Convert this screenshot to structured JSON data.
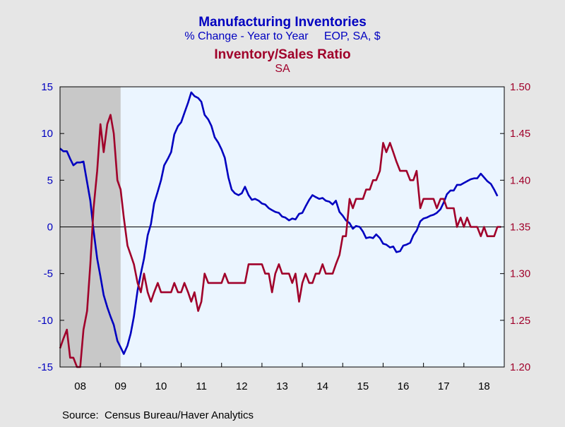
{
  "colors": {
    "blue": "#0000C0",
    "red": "#A0002A",
    "recession": "#C8C8C8",
    "plot_bg": "#EBF5FF",
    "background": "#E6E6E6"
  },
  "chart_data": {
    "type": "line",
    "title": "Manufacturing Inventories",
    "subtitle": "% Change - Year to Year     EOP, SA, $",
    "title2": "Inventory/Sales Ratio",
    "subtitle2": "SA",
    "source": "Source:  Census Bureau/Haver Analytics",
    "x_tick_labels": [
      "08",
      "09",
      "10",
      "11",
      "12",
      "13",
      "14",
      "15",
      "16",
      "17",
      "18"
    ],
    "x_range": [
      2008.0,
      2019.0
    ],
    "left_axis": {
      "ylim": [
        -15,
        15
      ],
      "ticks": [
        15,
        10,
        5,
        0,
        -5,
        -10,
        -15
      ]
    },
    "right_axis": {
      "ylim": [
        1.2,
        1.5
      ],
      "ticks": [
        "1.50",
        "1.45",
        "1.40",
        "1.35",
        "1.30",
        "1.25",
        "1.20"
      ]
    },
    "recession_shading": [
      [
        2008.0,
        2009.5
      ]
    ],
    "zero_line": 0,
    "grid": false,
    "series": [
      {
        "axis": "left",
        "color": "#0000C0",
        "points": [
          [
            2008.0,
            8.4
          ],
          [
            2008.08,
            8.1
          ],
          [
            2008.17,
            8.1
          ],
          [
            2008.25,
            7.3
          ],
          [
            2008.33,
            6.6
          ],
          [
            2008.42,
            6.9
          ],
          [
            2008.5,
            6.9
          ],
          [
            2008.58,
            7.0
          ],
          [
            2008.67,
            4.8
          ],
          [
            2008.75,
            2.8
          ],
          [
            2008.83,
            -0.4
          ],
          [
            2008.92,
            -3.4
          ],
          [
            2009.0,
            -5.3
          ],
          [
            2009.08,
            -7.3
          ],
          [
            2009.17,
            -8.6
          ],
          [
            2009.25,
            -9.6
          ],
          [
            2009.33,
            -10.5
          ],
          [
            2009.42,
            -12.2
          ],
          [
            2009.5,
            -12.9
          ],
          [
            2009.58,
            -13.6
          ],
          [
            2009.67,
            -12.7
          ],
          [
            2009.75,
            -11.4
          ],
          [
            2009.83,
            -9.6
          ],
          [
            2009.92,
            -6.8
          ],
          [
            2010.0,
            -5.0
          ],
          [
            2010.08,
            -3.4
          ],
          [
            2010.17,
            -0.9
          ],
          [
            2010.25,
            0.3
          ],
          [
            2010.33,
            2.5
          ],
          [
            2010.42,
            3.8
          ],
          [
            2010.5,
            5.0
          ],
          [
            2010.58,
            6.6
          ],
          [
            2010.67,
            7.3
          ],
          [
            2010.75,
            8.0
          ],
          [
            2010.83,
            9.9
          ],
          [
            2010.92,
            10.8
          ],
          [
            2011.0,
            11.2
          ],
          [
            2011.08,
            12.2
          ],
          [
            2011.17,
            13.3
          ],
          [
            2011.25,
            14.4
          ],
          [
            2011.33,
            14.0
          ],
          [
            2011.42,
            13.8
          ],
          [
            2011.5,
            13.4
          ],
          [
            2011.58,
            12.0
          ],
          [
            2011.67,
            11.5
          ],
          [
            2011.75,
            10.8
          ],
          [
            2011.83,
            9.6
          ],
          [
            2011.92,
            9.0
          ],
          [
            2012.0,
            8.3
          ],
          [
            2012.08,
            7.4
          ],
          [
            2012.17,
            5.3
          ],
          [
            2012.25,
            4.0
          ],
          [
            2012.33,
            3.6
          ],
          [
            2012.42,
            3.4
          ],
          [
            2012.5,
            3.6
          ],
          [
            2012.58,
            4.3
          ],
          [
            2012.67,
            3.4
          ],
          [
            2012.75,
            2.9
          ],
          [
            2012.83,
            3.0
          ],
          [
            2012.92,
            2.8
          ],
          [
            2013.0,
            2.5
          ],
          [
            2013.08,
            2.4
          ],
          [
            2013.17,
            2.0
          ],
          [
            2013.25,
            1.8
          ],
          [
            2013.33,
            1.6
          ],
          [
            2013.42,
            1.5
          ],
          [
            2013.5,
            1.1
          ],
          [
            2013.58,
            1.0
          ],
          [
            2013.67,
            0.7
          ],
          [
            2013.75,
            0.9
          ],
          [
            2013.83,
            0.8
          ],
          [
            2013.92,
            1.4
          ],
          [
            2014.0,
            1.5
          ],
          [
            2014.08,
            2.2
          ],
          [
            2014.17,
            2.9
          ],
          [
            2014.25,
            3.4
          ],
          [
            2014.33,
            3.2
          ],
          [
            2014.42,
            3.0
          ],
          [
            2014.5,
            3.1
          ],
          [
            2014.58,
            2.8
          ],
          [
            2014.67,
            2.7
          ],
          [
            2014.75,
            2.4
          ],
          [
            2014.83,
            2.8
          ],
          [
            2014.92,
            1.6
          ],
          [
            2015.0,
            1.2
          ],
          [
            2015.08,
            0.7
          ],
          [
            2015.17,
            0.4
          ],
          [
            2015.25,
            -0.2
          ],
          [
            2015.33,
            0.1
          ],
          [
            2015.42,
            0.0
          ],
          [
            2015.5,
            -0.5
          ],
          [
            2015.58,
            -1.2
          ],
          [
            2015.67,
            -1.1
          ],
          [
            2015.75,
            -1.2
          ],
          [
            2015.83,
            -0.8
          ],
          [
            2015.92,
            -1.2
          ],
          [
            2016.0,
            -1.8
          ],
          [
            2016.08,
            -1.9
          ],
          [
            2016.17,
            -2.2
          ],
          [
            2016.25,
            -2.1
          ],
          [
            2016.33,
            -2.7
          ],
          [
            2016.42,
            -2.6
          ],
          [
            2016.5,
            -2.0
          ],
          [
            2016.58,
            -1.9
          ],
          [
            2016.67,
            -1.7
          ],
          [
            2016.75,
            -0.9
          ],
          [
            2016.83,
            -0.4
          ],
          [
            2016.92,
            0.6
          ],
          [
            2017.0,
            0.9
          ],
          [
            2017.08,
            1.0
          ],
          [
            2017.17,
            1.2
          ],
          [
            2017.25,
            1.3
          ],
          [
            2017.33,
            1.5
          ],
          [
            2017.42,
            1.9
          ],
          [
            2017.5,
            2.6
          ],
          [
            2017.58,
            3.5
          ],
          [
            2017.67,
            3.9
          ],
          [
            2017.75,
            3.9
          ],
          [
            2017.83,
            4.5
          ],
          [
            2017.92,
            4.5
          ],
          [
            2018.0,
            4.7
          ],
          [
            2018.08,
            4.9
          ],
          [
            2018.17,
            5.1
          ],
          [
            2018.25,
            5.2
          ],
          [
            2018.33,
            5.2
          ],
          [
            2018.42,
            5.7
          ],
          [
            2018.5,
            5.3
          ],
          [
            2018.58,
            4.9
          ],
          [
            2018.67,
            4.6
          ],
          [
            2018.75,
            4.0
          ],
          [
            2018.83,
            3.3
          ]
        ]
      },
      {
        "axis": "right",
        "color": "#A0002A",
        "points": [
          [
            2008.0,
            1.22
          ],
          [
            2008.08,
            1.23
          ],
          [
            2008.17,
            1.24
          ],
          [
            2008.25,
            1.21
          ],
          [
            2008.33,
            1.21
          ],
          [
            2008.42,
            1.2
          ],
          [
            2008.5,
            1.2
          ],
          [
            2008.58,
            1.24
          ],
          [
            2008.67,
            1.26
          ],
          [
            2008.75,
            1.31
          ],
          [
            2008.83,
            1.37
          ],
          [
            2008.92,
            1.41
          ],
          [
            2009.0,
            1.46
          ],
          [
            2009.08,
            1.43
          ],
          [
            2009.17,
            1.46
          ],
          [
            2009.25,
            1.47
          ],
          [
            2009.33,
            1.45
          ],
          [
            2009.42,
            1.4
          ],
          [
            2009.5,
            1.39
          ],
          [
            2009.58,
            1.36
          ],
          [
            2009.67,
            1.33
          ],
          [
            2009.75,
            1.32
          ],
          [
            2009.83,
            1.31
          ],
          [
            2009.92,
            1.29
          ],
          [
            2010.0,
            1.28
          ],
          [
            2010.08,
            1.3
          ],
          [
            2010.17,
            1.28
          ],
          [
            2010.25,
            1.27
          ],
          [
            2010.33,
            1.28
          ],
          [
            2010.42,
            1.29
          ],
          [
            2010.5,
            1.28
          ],
          [
            2010.58,
            1.28
          ],
          [
            2010.67,
            1.28
          ],
          [
            2010.75,
            1.28
          ],
          [
            2010.83,
            1.29
          ],
          [
            2010.92,
            1.28
          ],
          [
            2011.0,
            1.28
          ],
          [
            2011.08,
            1.29
          ],
          [
            2011.17,
            1.28
          ],
          [
            2011.25,
            1.27
          ],
          [
            2011.33,
            1.28
          ],
          [
            2011.42,
            1.26
          ],
          [
            2011.5,
            1.27
          ],
          [
            2011.58,
            1.3
          ],
          [
            2011.67,
            1.29
          ],
          [
            2011.75,
            1.29
          ],
          [
            2011.83,
            1.29
          ],
          [
            2011.92,
            1.29
          ],
          [
            2012.0,
            1.29
          ],
          [
            2012.08,
            1.3
          ],
          [
            2012.17,
            1.29
          ],
          [
            2012.25,
            1.29
          ],
          [
            2012.33,
            1.29
          ],
          [
            2012.42,
            1.29
          ],
          [
            2012.5,
            1.29
          ],
          [
            2012.58,
            1.29
          ],
          [
            2012.67,
            1.31
          ],
          [
            2012.75,
            1.31
          ],
          [
            2012.83,
            1.31
          ],
          [
            2012.92,
            1.31
          ],
          [
            2013.0,
            1.31
          ],
          [
            2013.08,
            1.3
          ],
          [
            2013.17,
            1.3
          ],
          [
            2013.25,
            1.28
          ],
          [
            2013.33,
            1.3
          ],
          [
            2013.42,
            1.31
          ],
          [
            2013.5,
            1.3
          ],
          [
            2013.58,
            1.3
          ],
          [
            2013.67,
            1.3
          ],
          [
            2013.75,
            1.29
          ],
          [
            2013.83,
            1.3
          ],
          [
            2013.92,
            1.27
          ],
          [
            2014.0,
            1.29
          ],
          [
            2014.08,
            1.3
          ],
          [
            2014.17,
            1.29
          ],
          [
            2014.25,
            1.29
          ],
          [
            2014.33,
            1.3
          ],
          [
            2014.42,
            1.3
          ],
          [
            2014.5,
            1.31
          ],
          [
            2014.58,
            1.3
          ],
          [
            2014.67,
            1.3
          ],
          [
            2014.75,
            1.3
          ],
          [
            2014.83,
            1.31
          ],
          [
            2014.92,
            1.32
          ],
          [
            2015.0,
            1.34
          ],
          [
            2015.08,
            1.34
          ],
          [
            2015.17,
            1.38
          ],
          [
            2015.25,
            1.37
          ],
          [
            2015.33,
            1.38
          ],
          [
            2015.42,
            1.38
          ],
          [
            2015.5,
            1.38
          ],
          [
            2015.58,
            1.39
          ],
          [
            2015.67,
            1.39
          ],
          [
            2015.75,
            1.4
          ],
          [
            2015.83,
            1.4
          ],
          [
            2015.92,
            1.41
          ],
          [
            2016.0,
            1.44
          ],
          [
            2016.08,
            1.43
          ],
          [
            2016.17,
            1.44
          ],
          [
            2016.25,
            1.43
          ],
          [
            2016.33,
            1.42
          ],
          [
            2016.42,
            1.41
          ],
          [
            2016.5,
            1.41
          ],
          [
            2016.58,
            1.41
          ],
          [
            2016.67,
            1.4
          ],
          [
            2016.75,
            1.4
          ],
          [
            2016.83,
            1.41
          ],
          [
            2016.92,
            1.37
          ],
          [
            2017.0,
            1.38
          ],
          [
            2017.08,
            1.38
          ],
          [
            2017.17,
            1.38
          ],
          [
            2017.25,
            1.38
          ],
          [
            2017.33,
            1.37
          ],
          [
            2017.42,
            1.38
          ],
          [
            2017.5,
            1.38
          ],
          [
            2017.58,
            1.37
          ],
          [
            2017.67,
            1.37
          ],
          [
            2017.75,
            1.37
          ],
          [
            2017.83,
            1.35
          ],
          [
            2017.92,
            1.36
          ],
          [
            2018.0,
            1.35
          ],
          [
            2018.08,
            1.36
          ],
          [
            2018.17,
            1.35
          ],
          [
            2018.25,
            1.35
          ],
          [
            2018.33,
            1.35
          ],
          [
            2018.42,
            1.34
          ],
          [
            2018.5,
            1.35
          ],
          [
            2018.58,
            1.34
          ],
          [
            2018.67,
            1.34
          ],
          [
            2018.75,
            1.34
          ],
          [
            2018.83,
            1.35
          ],
          [
            2018.92,
            1.35
          ]
        ]
      }
    ]
  }
}
